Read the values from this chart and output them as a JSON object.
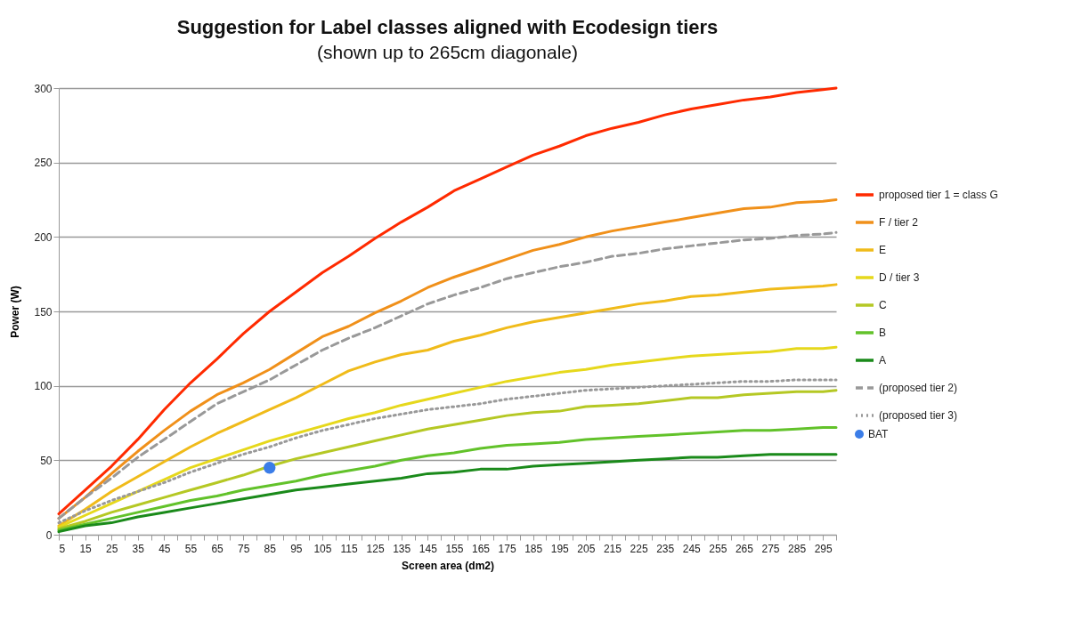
{
  "chart_data": {
    "type": "line",
    "title": "Suggestion for Label classes aligned with Ecodesign tiers",
    "subtitle": "(shown up to 265cm diagonale)",
    "xlabel": "Screen area (dm2)",
    "ylabel": "Power (W)",
    "x": [
      5,
      15,
      25,
      35,
      45,
      55,
      65,
      75,
      85,
      95,
      105,
      115,
      125,
      135,
      145,
      155,
      165,
      175,
      185,
      195,
      205,
      215,
      225,
      235,
      245,
      255,
      265,
      275,
      285,
      295,
      300
    ],
    "xlim": [
      5,
      300
    ],
    "xticks": [
      5,
      {
        "value": 10,
        "label": null
      },
      15,
      {
        "value": 20,
        "label": null
      },
      25,
      {
        "value": 30,
        "label": null
      },
      35,
      {
        "value": 40,
        "label": null
      },
      45,
      {
        "value": 50,
        "label": null
      },
      55,
      {
        "value": 60,
        "label": null
      },
      65,
      {
        "value": 70,
        "label": null
      },
      75,
      {
        "value": 80,
        "label": null
      },
      85,
      {
        "value": 90,
        "label": null
      },
      95,
      {
        "value": 100,
        "label": null
      },
      105,
      {
        "value": 110,
        "label": null
      },
      115,
      {
        "value": 120,
        "label": null
      },
      125,
      {
        "value": 130,
        "label": null
      },
      135,
      {
        "value": 140,
        "label": null
      },
      145,
      {
        "value": 150,
        "label": null
      },
      155,
      {
        "value": 160,
        "label": null
      },
      165,
      {
        "value": 170,
        "label": null
      },
      175,
      {
        "value": 180,
        "label": null
      },
      185,
      {
        "value": 190,
        "label": null
      },
      195,
      {
        "value": 200,
        "label": null
      },
      205,
      {
        "value": 210,
        "label": null
      },
      215,
      {
        "value": 220,
        "label": null
      },
      225,
      {
        "value": 230,
        "label": null
      },
      235,
      {
        "value": 240,
        "label": null
      },
      245,
      {
        "value": 250,
        "label": null
      },
      255,
      {
        "value": 260,
        "label": null
      },
      265,
      {
        "value": 270,
        "label": null
      },
      275,
      {
        "value": 280,
        "label": null
      },
      285,
      {
        "value": 290,
        "label": null
      },
      295,
      {
        "value": 300,
        "label": null
      }
    ],
    "ylim": [
      0,
      300
    ],
    "yticks": [
      0,
      50,
      100,
      150,
      200,
      250,
      300
    ],
    "grid": "y",
    "legend": "right",
    "marker": "none",
    "series": [
      {
        "name": "proposed tier 1 = class G",
        "color": "#ff2a00",
        "line_style": "solid",
        "values": [
          14,
          30,
          46,
          64,
          84,
          102,
          118,
          135,
          150,
          163,
          176,
          187,
          199,
          210,
          220,
          231,
          239,
          247,
          255,
          261,
          268,
          273,
          277,
          282,
          286,
          289,
          292,
          294,
          297,
          299,
          300
        ]
      },
      {
        "name": "F / tier 2",
        "color": "#f0901a",
        "line_style": "solid",
        "values": [
          11,
          25,
          41,
          56,
          70,
          83,
          94,
          102,
          111,
          122,
          133,
          140,
          149,
          157,
          166,
          173,
          179,
          185,
          191,
          195,
          200,
          204,
          207,
          210,
          213,
          216,
          219,
          220,
          223,
          224,
          225
        ]
      },
      {
        "name": "E",
        "color": "#f0bb1a",
        "line_style": "solid",
        "values": [
          6,
          17,
          29,
          39,
          49,
          59,
          68,
          76,
          84,
          92,
          101,
          110,
          116,
          121,
          124,
          130,
          134,
          139,
          143,
          146,
          149,
          152,
          155,
          157,
          160,
          161,
          163,
          165,
          166,
          167,
          168
        ]
      },
      {
        "name": "D / tier 3",
        "color": "#e6d81c",
        "line_style": "solid",
        "values": [
          5,
          13,
          21,
          29,
          37,
          45,
          51,
          57,
          63,
          68,
          73,
          78,
          82,
          87,
          91,
          95,
          99,
          103,
          106,
          109,
          111,
          114,
          116,
          118,
          120,
          121,
          122,
          123,
          125,
          125,
          126
        ]
      },
      {
        "name": "C",
        "color": "#b5c824",
        "line_style": "solid",
        "values": [
          4,
          9,
          15,
          20,
          25,
          30,
          35,
          40,
          46,
          51,
          55,
          59,
          63,
          67,
          71,
          74,
          77,
          80,
          82,
          83,
          86,
          87,
          88,
          90,
          92,
          92,
          94,
          95,
          96,
          96,
          97
        ]
      },
      {
        "name": "B",
        "color": "#62c22a",
        "line_style": "solid",
        "values": [
          3,
          7,
          11,
          15,
          19,
          23,
          26,
          30,
          33,
          36,
          40,
          43,
          46,
          50,
          53,
          55,
          58,
          60,
          61,
          62,
          64,
          65,
          66,
          67,
          68,
          69,
          70,
          70,
          71,
          72,
          72
        ]
      },
      {
        "name": "A",
        "color": "#1a8a1a",
        "line_style": "solid",
        "values": [
          2,
          6,
          8,
          12,
          15,
          18,
          21,
          24,
          27,
          30,
          32,
          34,
          36,
          38,
          41,
          42,
          44,
          44,
          46,
          47,
          48,
          49,
          50,
          51,
          52,
          52,
          53,
          54,
          54,
          54,
          54
        ]
      },
      {
        "name": "(proposed tier 2)",
        "color": "#999999",
        "line_style": "dashed",
        "values": [
          11,
          25,
          38,
          52,
          64,
          76,
          88,
          96,
          104,
          114,
          124,
          132,
          139,
          147,
          155,
          161,
          166,
          172,
          176,
          180,
          183,
          187,
          189,
          192,
          194,
          196,
          198,
          199,
          201,
          202,
          203
        ]
      },
      {
        "name": "(proposed tier 3)",
        "color": "#999999",
        "line_style": "dotted",
        "values": [
          8,
          16,
          23,
          29,
          35,
          42,
          48,
          54,
          59,
          65,
          70,
          74,
          78,
          81,
          84,
          86,
          88,
          91,
          93,
          95,
          97,
          98,
          99,
          100,
          101,
          102,
          103,
          103,
          104,
          104,
          104
        ]
      },
      {
        "name": "BAT",
        "color": "#3b7de8",
        "type": "scatter",
        "marker": "circle",
        "x": [
          85
        ],
        "values": [
          45
        ]
      }
    ]
  }
}
